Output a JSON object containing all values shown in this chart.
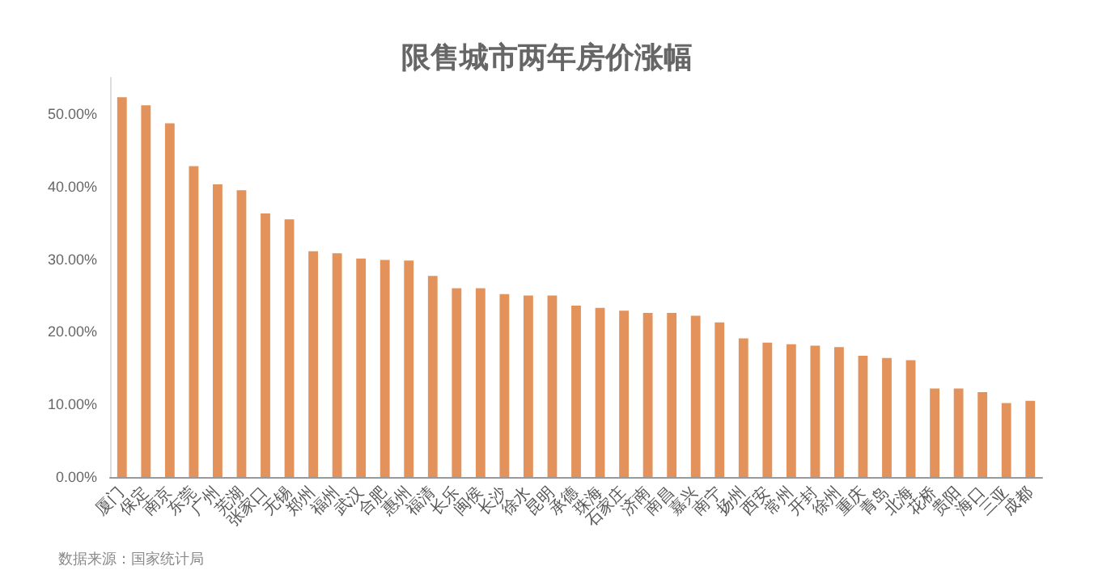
{
  "chart_data": {
    "type": "bar",
    "title": "限售城市两年房价涨幅",
    "categories": [
      "厦门",
      "保定",
      "南京",
      "东莞",
      "广州",
      "芜湖",
      "张家口",
      "无锡",
      "郑州",
      "福州",
      "武汉",
      "合肥",
      "惠州",
      "福清",
      "长乐",
      "闽侯",
      "长沙",
      "徐水",
      "昆明",
      "承德",
      "珠海",
      "石家庄",
      "济南",
      "南昌",
      "嘉兴",
      "南宁",
      "扬州",
      "西安",
      "常州",
      "开封",
      "徐州",
      "重庆",
      "青岛",
      "北海",
      "花桥",
      "贵阳",
      "海口",
      "三亚",
      "成都"
    ],
    "values": [
      52.3,
      51.2,
      48.7,
      42.8,
      40.3,
      39.5,
      36.3,
      35.5,
      31.1,
      30.8,
      30.1,
      29.9,
      29.8,
      27.7,
      26.0,
      26.0,
      25.2,
      25.0,
      25.0,
      23.6,
      23.3,
      22.9,
      22.6,
      22.6,
      22.2,
      21.3,
      19.1,
      18.5,
      18.3,
      18.1,
      17.9,
      16.7,
      16.4,
      16.1,
      12.2,
      12.2,
      11.7,
      10.2,
      10.5
    ],
    "color": "#e2925a",
    "ylim": [
      0,
      55
    ],
    "yticks": [
      {
        "value": 0,
        "label": "0.00%"
      },
      {
        "value": 10,
        "label": "10.00%"
      },
      {
        "value": 20,
        "label": "20.00%"
      },
      {
        "value": 30,
        "label": "30.00%"
      },
      {
        "value": 40,
        "label": "40.00%"
      },
      {
        "value": 50,
        "label": "50.00%"
      }
    ],
    "grid": false,
    "annotations": [
      "数据来源：国家统计局"
    ]
  }
}
